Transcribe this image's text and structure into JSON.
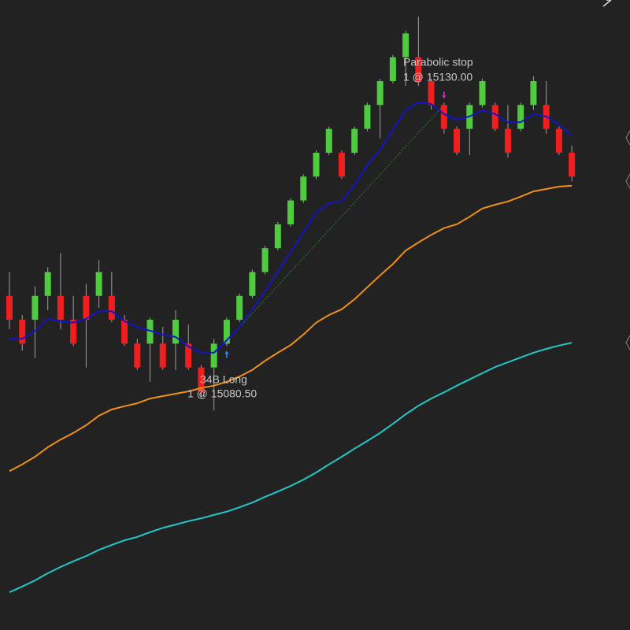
{
  "chart_data": {
    "type": "candlestick",
    "ylim": [
      15020,
      15152
    ],
    "up_color": "#4fcb3f",
    "down_color": "#f01e1e",
    "wick_color": "#a0a0a0",
    "open": [
      15090,
      15085,
      15085,
      15090,
      15090,
      15085,
      15090,
      15090,
      15090,
      15085,
      15080,
      15080,
      15080,
      15080,
      15080,
      15075,
      15075,
      15080,
      15085,
      15090,
      15095,
      15100,
      15105,
      15110,
      15115,
      15120,
      15120,
      15120,
      15125,
      15130,
      15135,
      15140,
      15140,
      15135,
      15130,
      15125,
      15125,
      15130,
      15130,
      15125,
      15125,
      15130,
      15130,
      15125,
      15120
    ],
    "high": [
      15095,
      15086,
      15092,
      15096,
      15099,
      15090,
      15092.5,
      15097.5,
      15095,
      15086,
      15081,
      15085.5,
      15083.5,
      15087,
      15084,
      15075.5,
      15081,
      15085.5,
      15090.5,
      15095.5,
      15100.5,
      15105.5,
      15110.5,
      15115.5,
      15120.5,
      15125.5,
      15120.5,
      15125.5,
      15130.5,
      15135.5,
      15140.5,
      15145.5,
      15148.5,
      15135.5,
      15130.5,
      15125.5,
      15130.5,
      15135.5,
      15130.5,
      15130,
      15130.5,
      15136,
      15135,
      15125.5,
      15121.5
    ],
    "low": [
      15083,
      15078.5,
      15077,
      15087,
      15083,
      15079.5,
      15075,
      15087.5,
      15084.5,
      15079.5,
      15074.5,
      15072,
      15074.5,
      15074.5,
      15074.5,
      15068.5,
      15066,
      15079.5,
      15084.5,
      15089.5,
      15094.5,
      15099.5,
      15104.5,
      15109.5,
      15114.5,
      15119.5,
      15114.5,
      15119.5,
      15124.5,
      15123,
      15134.5,
      15134,
      15134,
      15129,
      15124,
      15119.5,
      15119.5,
      15129.5,
      15124.5,
      15119,
      15124.5,
      15129,
      15124,
      15119.5,
      15114
    ],
    "close": [
      15085,
      15080,
      15090,
      15095,
      15085,
      15080,
      15085,
      15095,
      15085,
      15080,
      15075,
      15085,
      15075,
      15085,
      15075,
      15070,
      15080,
      15085,
      15090,
      15095,
      15100,
      15105,
      15110,
      15115,
      15120,
      15125,
      15115,
      15125,
      15130,
      15135,
      15140,
      15145,
      15135,
      15130,
      15125,
      15120,
      15130,
      15135,
      15125,
      15120,
      15130,
      15135,
      15125,
      15120,
      15115
    ],
    "series": [
      {
        "color": "#1414c8",
        "values": [
          15081.0,
          15081.0,
          15082.7,
          15085.2,
          15084.7,
          15084.4,
          15085.2,
          15086.8,
          15086.8,
          15084.7,
          15083.5,
          15082.7,
          15081.9,
          15081.4,
          15079.4,
          15078.1,
          15078.1,
          15080.7,
          15083.5,
          15087.2,
          15091.0,
          15095.1,
          15099.2,
          15103.3,
          15107.5,
          15109.4,
          15109.9,
          15113.2,
          15117.4,
          15120.7,
          15124.8,
          15128.9,
          15130.6,
          15130.2,
          15128.1,
          15126.9,
          15127.6,
          15128.9,
          15128.1,
          15126.4,
          15126.4,
          15128.1,
          15127.6,
          15125.9,
          15123.6
        ]
      },
      {
        "color": "#f0901a",
        "values": [
          15053.3,
          15054.7,
          15056.3,
          15058.3,
          15059.9,
          15061.3,
          15062.9,
          15064.9,
          15066.2,
          15066.9,
          15067.5,
          15068.5,
          15069.0,
          15069.5,
          15070.0,
          15070.7,
          15071.2,
          15072.0,
          15073.1,
          15074.5,
          15076.4,
          15078.1,
          15079.7,
          15081.9,
          15084.4,
          15086.0,
          15087.2,
          15089.3,
          15091.8,
          15094.3,
          15096.7,
          15099.5,
          15101.2,
          15102.8,
          15104.2,
          15105.0,
          15106.6,
          15108.3,
          15109.1,
          15109.8,
          15110.8,
          15111.9,
          15112.4,
          15112.9,
          15113.1
        ]
      },
      {
        "color": "#22c8c8",
        "values": [
          15027.9,
          15029.1,
          15030.4,
          15031.9,
          15033.2,
          15034.4,
          15035.5,
          15036.8,
          15037.8,
          15038.8,
          15039.5,
          15040.5,
          15041.4,
          15042.1,
          15042.8,
          15043.4,
          15044.1,
          15044.8,
          15045.7,
          15046.7,
          15047.9,
          15049.0,
          15050.2,
          15051.5,
          15053.0,
          15054.7,
          15056.3,
          15058.0,
          15059.6,
          15061.3,
          15063.2,
          15065.2,
          15067.0,
          15068.5,
          15069.8,
          15071.2,
          15072.5,
          15073.8,
          15075.1,
          15076.1,
          15077.1,
          15078.1,
          15078.9,
          15079.6,
          15080.2
        ]
      }
    ],
    "trades": [
      {
        "label": "34B Long",
        "detail": "1 @ 15080.50",
        "price": 15080.5,
        "color": "#2a8cff"
      },
      {
        "label": "Parabolic stop",
        "detail": "1 @ 15130.00",
        "price": 15130.0,
        "color": "#e020e0"
      }
    ]
  }
}
